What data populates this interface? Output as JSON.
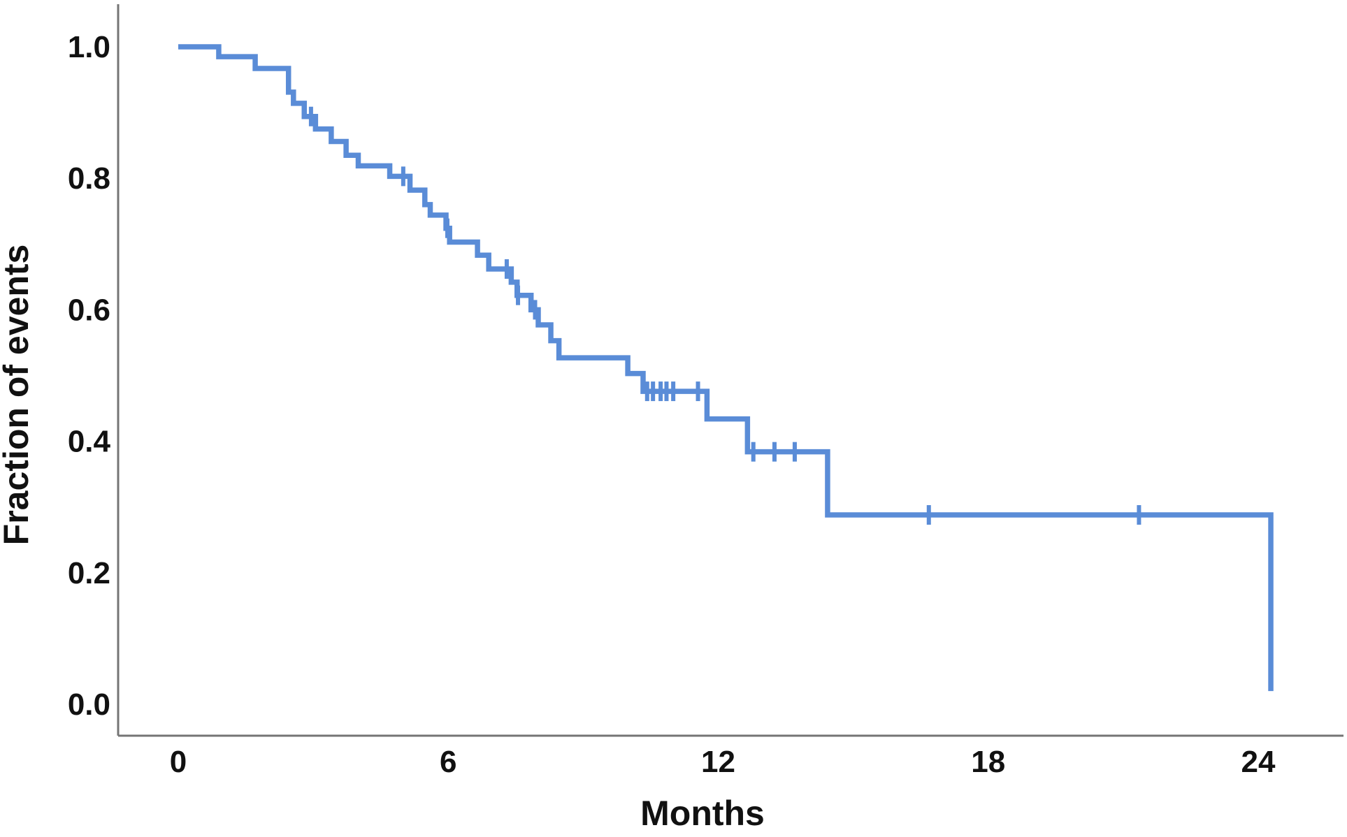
{
  "figure": {
    "background": "#ffffff",
    "x_axis_title": "Months",
    "y_axis_title": "Fraction of events"
  },
  "chart_data": {
    "type": "line",
    "subtype": "kaplan-meier-step",
    "title": "",
    "xlabel": "Months",
    "ylabel": "Fraction of events",
    "xlim": [
      0,
      26
    ],
    "ylim": [
      0.0,
      1.0
    ],
    "grid": false,
    "legend_position": "none",
    "x_ticks": {
      "values": [
        0,
        6,
        12,
        18,
        24
      ],
      "labels": [
        "0",
        "6",
        "12",
        "18",
        "24"
      ]
    },
    "y_ticks": {
      "values": [
        1.0,
        0.8,
        0.6,
        0.4,
        0.2,
        0.0
      ],
      "labels": [
        "1.0",
        "0.8",
        "0.6",
        "0.4",
        "0.2",
        "0.0"
      ]
    },
    "colors": {
      "curve": "#5A8CD7",
      "axis": "#757575",
      "text": "#111111"
    },
    "series": [
      {
        "name": "Fraction of events",
        "color": "#5A8CD7",
        "steps_t_f": [
          [
            0.0,
            1.0
          ],
          [
            0.9,
            0.985
          ],
          [
            1.71,
            0.967
          ],
          [
            2.45,
            0.931
          ],
          [
            2.56,
            0.914
          ],
          [
            2.8,
            0.894
          ],
          [
            3.05,
            0.875
          ],
          [
            3.4,
            0.856
          ],
          [
            3.73,
            0.835
          ],
          [
            4.0,
            0.819
          ],
          [
            4.7,
            0.803
          ],
          [
            5.15,
            0.782
          ],
          [
            5.48,
            0.76
          ],
          [
            5.6,
            0.744
          ],
          [
            5.95,
            0.724
          ],
          [
            6.03,
            0.703
          ],
          [
            6.65,
            0.683
          ],
          [
            6.9,
            0.662
          ],
          [
            7.4,
            0.642
          ],
          [
            7.53,
            0.622
          ],
          [
            7.84,
            0.6
          ],
          [
            8.0,
            0.577
          ],
          [
            8.28,
            0.553
          ],
          [
            8.46,
            0.527
          ],
          [
            9.99,
            0.503
          ],
          [
            10.33,
            0.476
          ],
          [
            11.75,
            0.434
          ],
          [
            12.65,
            0.384
          ],
          [
            14.43,
            0.288
          ],
          [
            24.28,
            0.02
          ]
        ],
        "censor_marks_t_f": [
          [
            2.95,
            0.894
          ],
          [
            5.0,
            0.803
          ],
          [
            5.98,
            0.724
          ],
          [
            7.3,
            0.662
          ],
          [
            7.55,
            0.622
          ],
          [
            7.93,
            0.6
          ],
          [
            10.42,
            0.476
          ],
          [
            10.55,
            0.476
          ],
          [
            10.72,
            0.476
          ],
          [
            10.85,
            0.476
          ],
          [
            11.0,
            0.476
          ],
          [
            11.55,
            0.476
          ],
          [
            12.78,
            0.384
          ],
          [
            13.25,
            0.384
          ],
          [
            13.7,
            0.384
          ],
          [
            16.68,
            0.288
          ],
          [
            21.35,
            0.288
          ]
        ]
      }
    ]
  }
}
